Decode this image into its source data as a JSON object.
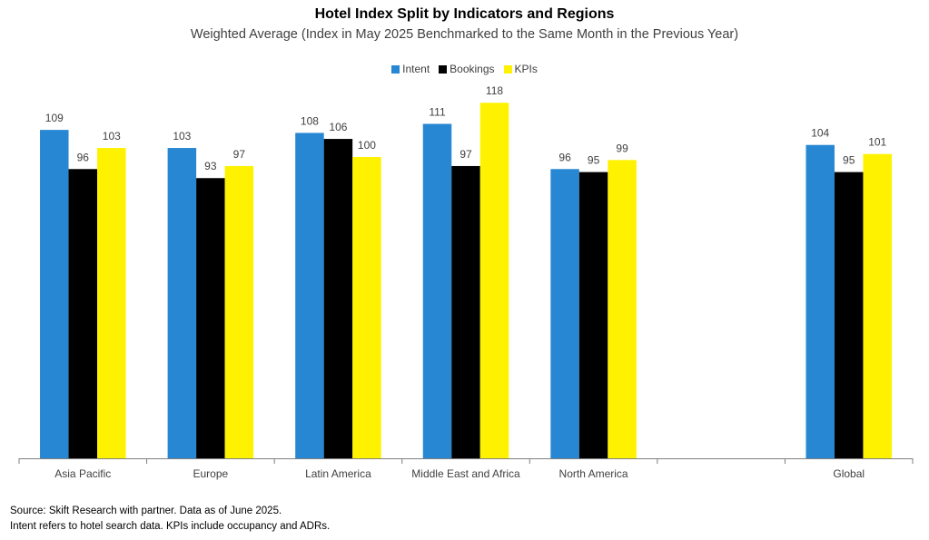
{
  "chart_data": {
    "type": "bar",
    "title": "Hotel Index Split by Indicators and Regions",
    "subtitle": "Weighted Average (Index in May 2025 Benchmarked to the Same Month in the Previous Year)",
    "categories": [
      "Asia Pacific",
      "Europe",
      "Latin America",
      "Middle East and Africa",
      "North America",
      "",
      "Global"
    ],
    "series": [
      {
        "name": "Intent",
        "color": "#2787D3",
        "values": [
          109,
          103,
          108,
          111,
          96,
          null,
          104
        ]
      },
      {
        "name": "Bookings",
        "color": "#000000",
        "values": [
          96,
          93,
          106,
          97,
          95,
          null,
          95
        ]
      },
      {
        "name": "KPIs",
        "color": "#FFF200",
        "values": [
          103,
          97,
          100,
          118,
          99,
          null,
          101
        ]
      }
    ],
    "ylim": [
      0,
      125
    ],
    "grid": false,
    "legend_position": "top-center",
    "data_labels": true
  },
  "footer": {
    "source": "Source: Skift Research with partner. Data as of June 2025.",
    "note": "Intent refers to hotel search data. KPIs include occupancy and ADRs."
  }
}
